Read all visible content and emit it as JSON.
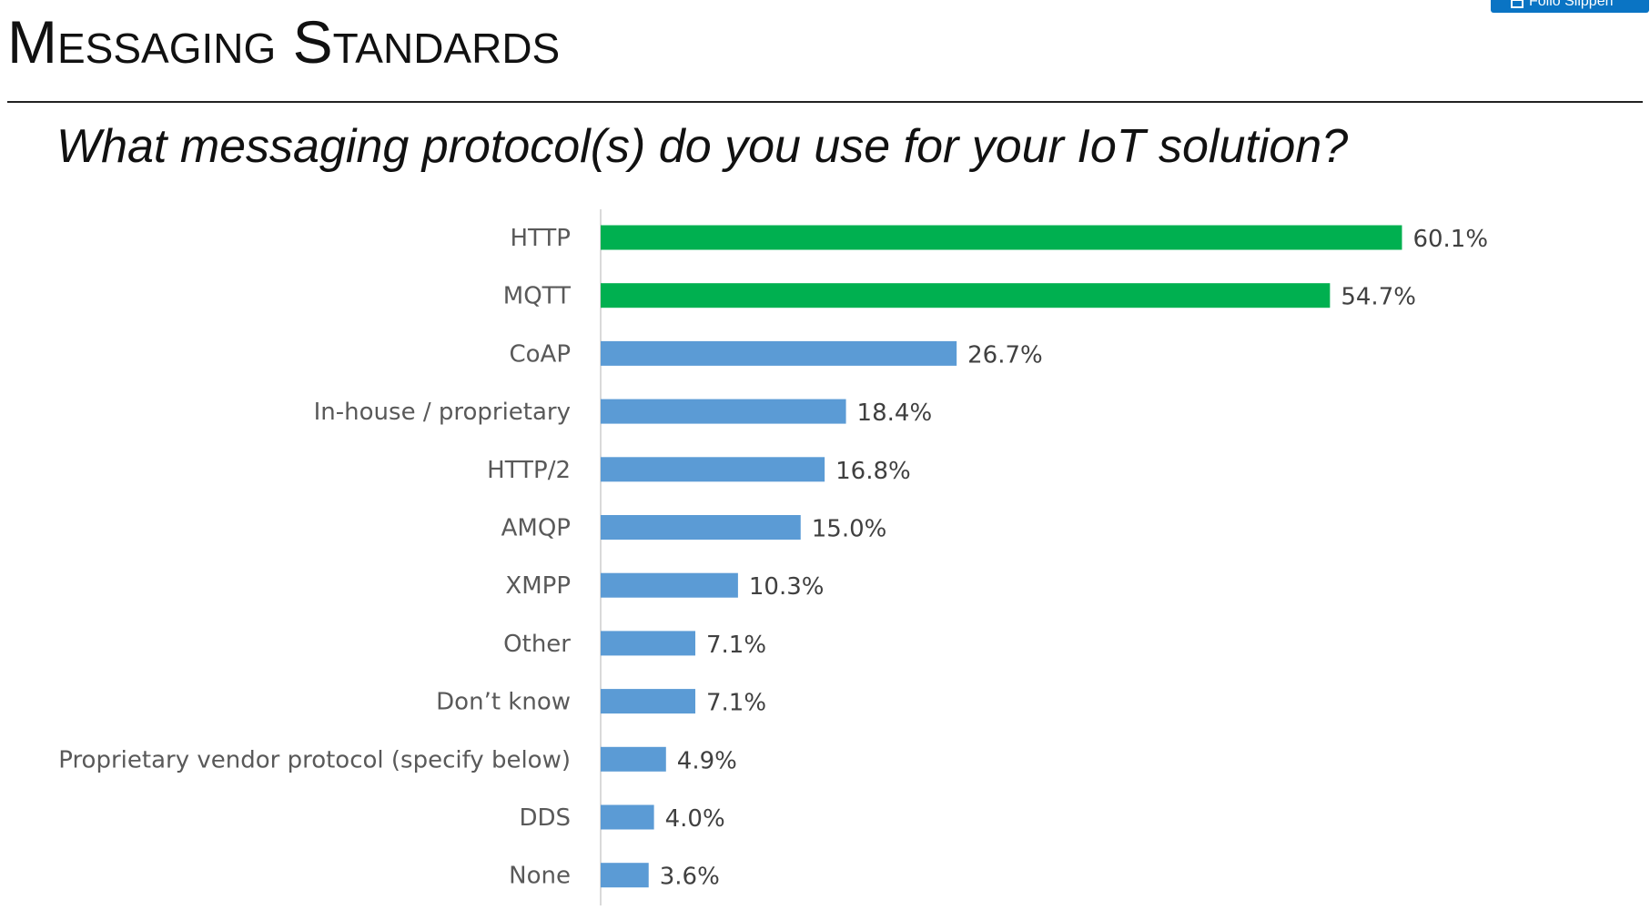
{
  "slide": {
    "title": "Messaging Standards",
    "subtitle": "What messaging protocol(s) do you use for your IoT solution?"
  },
  "corner_button": {
    "label": "Follo Slippen",
    "icon": "clip-icon",
    "color": "#0a74c4"
  },
  "chart_data": {
    "type": "bar",
    "orientation": "horizontal",
    "title": "",
    "xlabel": "",
    "ylabel": "",
    "xlim": [
      0,
      70
    ],
    "grid": false,
    "categories": [
      "HTTP",
      "MQTT",
      "CoAP",
      "In-house / proprietary",
      "HTTP/2",
      "AMQP",
      "XMPP",
      "Other",
      "Don’t know",
      "Proprietary vendor protocol (specify below)",
      "DDS",
      "None"
    ],
    "values": [
      60.1,
      54.7,
      26.7,
      18.4,
      16.8,
      15.0,
      10.3,
      7.1,
      7.1,
      4.9,
      4.0,
      3.6
    ],
    "value_labels": [
      "60.1%",
      "54.7%",
      "26.7%",
      "18.4%",
      "16.8%",
      "15.0%",
      "10.3%",
      "7.1%",
      "7.1%",
      "4.9%",
      "4.0%",
      "3.6%"
    ],
    "bar_colors": [
      "#00b050",
      "#00b050",
      "#5b9bd5",
      "#5b9bd5",
      "#5b9bd5",
      "#5b9bd5",
      "#5b9bd5",
      "#5b9bd5",
      "#5b9bd5",
      "#5b9bd5",
      "#5b9bd5",
      "#5b9bd5"
    ],
    "axis_color": "#d9d9d9"
  }
}
